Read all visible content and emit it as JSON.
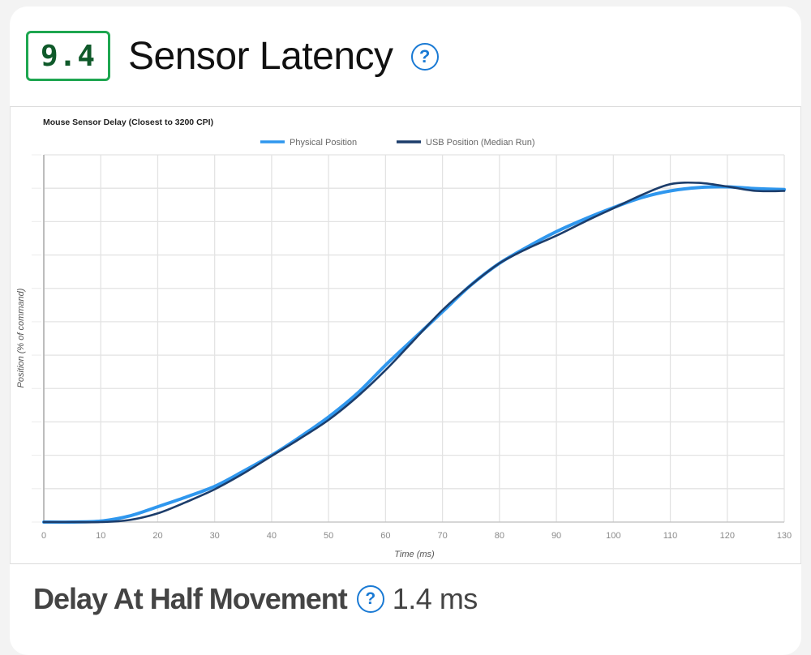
{
  "header": {
    "score": "9.4",
    "title": "Sensor Latency",
    "help_icon": "question-circle-icon"
  },
  "footer": {
    "metric_label": "Delay At Half Movement",
    "help_icon": "question-circle-icon",
    "metric_value": "1.4 ms"
  },
  "colors": {
    "score_border": "#1ea650",
    "score_text": "#0f5a2a",
    "help_icon": "#1a7ad4",
    "physical_series": "#2f97ee",
    "usb_series": "#1c3d6b"
  },
  "chart_data": {
    "type": "line",
    "title": "Mouse Sensor Delay (Closest to 3200 CPI)",
    "xlabel": "Time (ms)",
    "ylabel": "Position (% of command)",
    "xlim": [
      0,
      130
    ],
    "ylim": [
      0,
      110
    ],
    "xticks": [
      0,
      10,
      20,
      30,
      40,
      50,
      60,
      70,
      80,
      90,
      100,
      110,
      120,
      130
    ],
    "yticks": [
      0,
      10,
      20,
      30,
      40,
      50,
      60,
      70,
      80,
      90,
      100,
      110
    ],
    "grid": true,
    "legend_position": "top-right",
    "x": [
      0,
      5,
      10,
      15,
      20,
      25,
      30,
      35,
      40,
      45,
      50,
      55,
      60,
      65,
      70,
      75,
      80,
      85,
      90,
      95,
      100,
      105,
      110,
      115,
      120,
      125,
      130
    ],
    "series": [
      {
        "name": "Physical Position",
        "color": "#2f97ee",
        "values": [
          0,
          0,
          0.3,
          1.8,
          4.6,
          7.5,
          10.7,
          15.2,
          20,
          25.5,
          31.5,
          38.5,
          47,
          55,
          63,
          71,
          77.5,
          82.5,
          87,
          90.8,
          94.2,
          97.2,
          99.2,
          100.2,
          100.4,
          99.9,
          99.6
        ]
      },
      {
        "name": "USB Position (Median Run)",
        "color": "#1c3d6b",
        "values": [
          0,
          0,
          0,
          0.6,
          2.6,
          6,
          9.8,
          14.5,
          19.8,
          25,
          30.6,
          37.5,
          45.5,
          54.5,
          63.5,
          71,
          77.5,
          82,
          85.8,
          90,
          94,
          98,
          101.2,
          101.6,
          100.5,
          99.2,
          99.2
        ]
      }
    ]
  }
}
